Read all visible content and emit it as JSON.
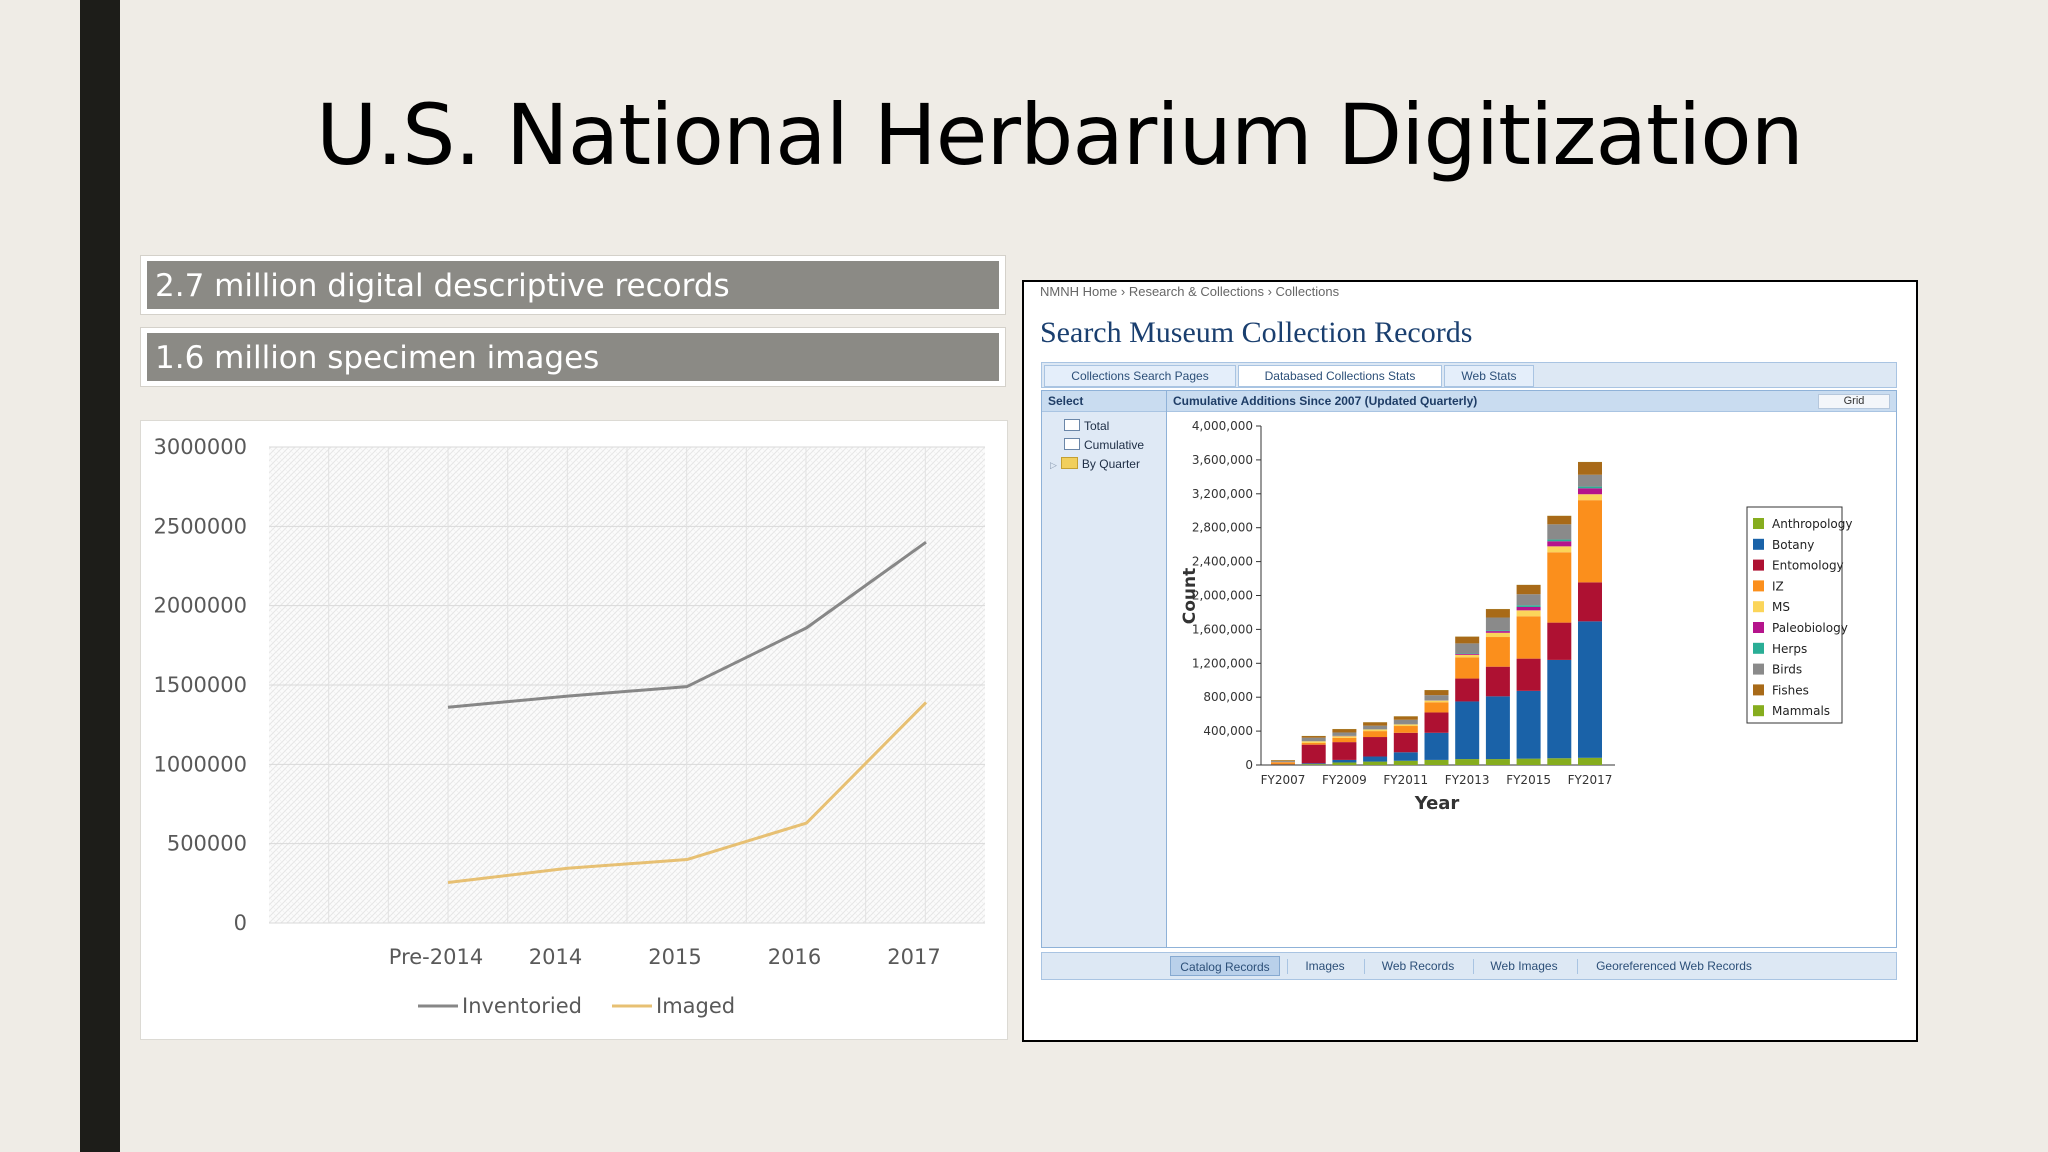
{
  "slide": {
    "title": "U.S. National Herbarium Digitization",
    "stat_1": "2.7 million digital descriptive records",
    "stat_2": "1.6 million specimen images"
  },
  "website": {
    "breadcrumb": "NMNH Home › Research & Collections › Collections",
    "heading": "Search Museum Collection Records",
    "tabs": [
      {
        "label": "Collections Search Pages",
        "active": false
      },
      {
        "label": "Databased Collections Stats",
        "active": true
      },
      {
        "label": "Web Stats",
        "active": false
      }
    ],
    "select_panel": {
      "header": "Select",
      "items": [
        "Total",
        "Cumulative",
        "By Quarter"
      ]
    },
    "chart_header": "Cumulative Additions Since 2007 (Updated Quarterly)",
    "grid_button": "Grid",
    "bottom_tabs": [
      {
        "label": "Catalog Records",
        "active": true
      },
      {
        "label": "Images",
        "active": false
      },
      {
        "label": "Web Records",
        "active": false
      },
      {
        "label": "Web Images",
        "active": false
      },
      {
        "label": "Georeferenced Web Records",
        "active": false
      }
    ]
  },
  "chart_data": [
    {
      "type": "line",
      "categories": [
        "Pre-2014",
        "2014",
        "2015",
        "2016",
        "2017"
      ],
      "ylim": [
        0,
        3000000
      ],
      "yticks": [
        "0",
        "500000",
        "1000000",
        "1500000",
        "2000000",
        "2500000",
        "3000000"
      ],
      "series": [
        {
          "name": "Inventoried",
          "color": "#878787",
          "values": [
            1360000,
            1430000,
            1490000,
            1860000,
            2400000
          ]
        },
        {
          "name": "Imaged",
          "color": "#e7c073",
          "values": [
            255000,
            345000,
            400000,
            630000,
            1390000
          ]
        }
      ],
      "legend": "bottom",
      "grid": true
    },
    {
      "type": "bar",
      "stacked": true,
      "xlabel": "Year",
      "ylabel": "Count",
      "ylim": [
        0,
        4000000
      ],
      "yticks": [
        "0",
        "400,000",
        "800,000",
        "1,200,000",
        "1,600,000",
        "2,000,000",
        "2,400,000",
        "2,800,000",
        "3,200,000",
        "3,600,000",
        "4,000,000"
      ],
      "categories": [
        "FY2007",
        "FY2008",
        "FY2009",
        "FY2010",
        "FY2011",
        "FY2012",
        "FY2013",
        "FY2014",
        "FY2015",
        "FY2016",
        "FY2017"
      ],
      "category_labels": [
        "FY2007",
        "",
        "FY2009",
        "",
        "FY2011",
        "",
        "FY2013",
        "",
        "FY2015",
        "",
        "FY2017"
      ],
      "legend": "right",
      "series": [
        {
          "name": "Anthropology",
          "color": "#86ad1e",
          "values": [
            5000,
            10000,
            30000,
            40000,
            50000,
            60000,
            70000,
            70000,
            75000,
            80000,
            85000
          ]
        },
        {
          "name": "Botany",
          "color": "#1a62a8",
          "values": [
            2000,
            10000,
            30000,
            60000,
            100000,
            320000,
            680000,
            740000,
            800000,
            1160000,
            1610000
          ]
        },
        {
          "name": "Entomology",
          "color": "#ae1132",
          "values": [
            5000,
            220000,
            210000,
            230000,
            230000,
            240000,
            270000,
            350000,
            380000,
            440000,
            460000
          ]
        },
        {
          "name": "IZ",
          "color": "#fb8f1c",
          "values": [
            20000,
            20000,
            50000,
            70000,
            80000,
            120000,
            250000,
            350000,
            500000,
            830000,
            970000
          ]
        },
        {
          "name": "MS",
          "color": "#fbd55a",
          "values": [
            2000,
            20000,
            20000,
            20000,
            20000,
            20000,
            30000,
            50000,
            70000,
            70000,
            70000
          ]
        },
        {
          "name": "Paleobiology",
          "color": "#b5148c",
          "values": [
            1000,
            1000,
            2000,
            2000,
            2000,
            2000,
            10000,
            20000,
            40000,
            60000,
            70000
          ]
        },
        {
          "name": "Herps",
          "color": "#2aae96",
          "values": [
            1000,
            1000,
            2000,
            2000,
            2000,
            2000,
            5000,
            10000,
            20000,
            20000,
            20000
          ]
        },
        {
          "name": "Birds",
          "color": "#8a8a8a",
          "values": [
            10000,
            40000,
            40000,
            40000,
            50000,
            60000,
            120000,
            150000,
            130000,
            180000,
            140000
          ]
        },
        {
          "name": "Fishes",
          "color": "#a86a18",
          "values": [
            10000,
            20000,
            40000,
            40000,
            40000,
            60000,
            80000,
            100000,
            110000,
            100000,
            150000
          ]
        },
        {
          "name": "Mammals",
          "color": "#86ad1e",
          "values": [
            1000,
            1000,
            1000,
            1000,
            1000,
            1000,
            1000,
            1000,
            1000,
            1000,
            1000
          ]
        }
      ]
    }
  ]
}
